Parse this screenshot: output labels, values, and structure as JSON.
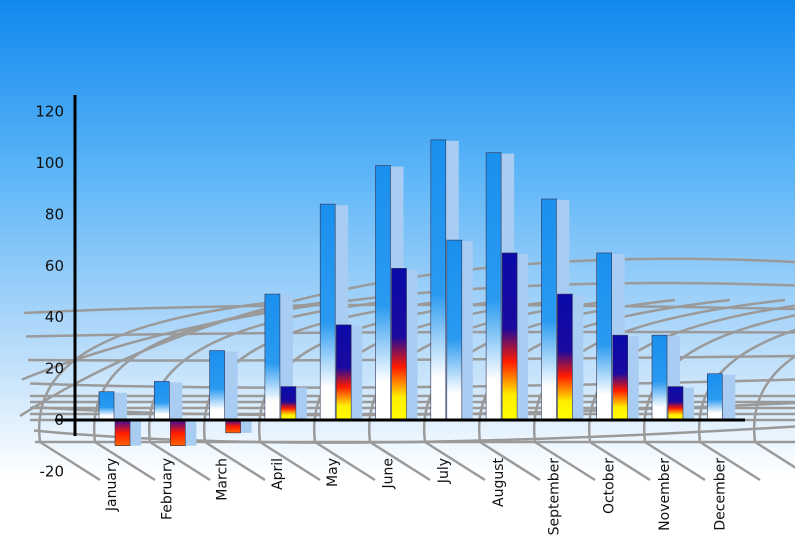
{
  "chart_data": {
    "type": "bar",
    "categories": [
      "January",
      "February",
      "March",
      "April",
      "May",
      "June",
      "July",
      "August",
      "September",
      "October",
      "November",
      "December"
    ],
    "series": [
      {
        "values": [
          11,
          15,
          27,
          49,
          84,
          99,
          109,
          104,
          86,
          65,
          33,
          18
        ]
      },
      {
        "values": [
          -10,
          -10,
          -5,
          13,
          37,
          59,
          70,
          65,
          49,
          33,
          13,
          null
        ]
      }
    ],
    "yticks": [
      "-20",
      "0",
      "20",
      "40",
      "60",
      "80",
      "100",
      "120"
    ],
    "ylim": [
      -20,
      125
    ],
    "grid": "decorative curved perspective grid",
    "colors": {
      "series1": "#1a90ee",
      "series2_top": "#0a0aa8",
      "series2_mid": "#ff1a00",
      "series2_bottom": "#ffff00",
      "shadow": "#a8ccf2",
      "axis": "#000000"
    }
  }
}
